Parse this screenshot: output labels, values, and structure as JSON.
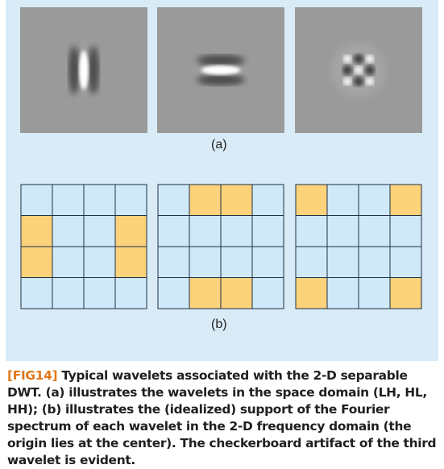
{
  "figure": {
    "label_a": "(a)",
    "label_b": "(b)",
    "wavelets": [
      {
        "icon": "vertical-wavelet-icon"
      },
      {
        "icon": "horizontal-wavelet-icon"
      },
      {
        "icon": "checkerboard-wavelet-icon"
      }
    ],
    "frequency_grids": [
      {
        "rows": 4,
        "cols": 4,
        "filled": [
          [
            1,
            0
          ],
          [
            2,
            0
          ],
          [
            1,
            3
          ],
          [
            2,
            3
          ]
        ]
      },
      {
        "rows": 4,
        "cols": 4,
        "filled": [
          [
            0,
            1
          ],
          [
            0,
            2
          ],
          [
            3,
            1
          ],
          [
            3,
            2
          ]
        ]
      },
      {
        "rows": 4,
        "cols": 4,
        "filled": [
          [
            0,
            0
          ],
          [
            0,
            3
          ],
          [
            3,
            0
          ],
          [
            3,
            3
          ]
        ]
      }
    ],
    "colors": {
      "background": "#d9ebf7",
      "cell": "#cfe9f9",
      "filled": "#fcd27a",
      "grid_line": "#1e2f45",
      "wavelet_bg": "#9a9a9a"
    }
  },
  "caption": {
    "tag": "[FIG14]",
    "text": " Typical wavelets associated with the 2-D separable DWT. (a) illustrates the wavelets in the space domain (LH, HL, HH); (b) illustrates the (idealized) support of the Fourier spectrum of each wavelet in the 2-D frequency domain (the origin lies at the center). The checkerboard artifact of the third wavelet is evident."
  }
}
